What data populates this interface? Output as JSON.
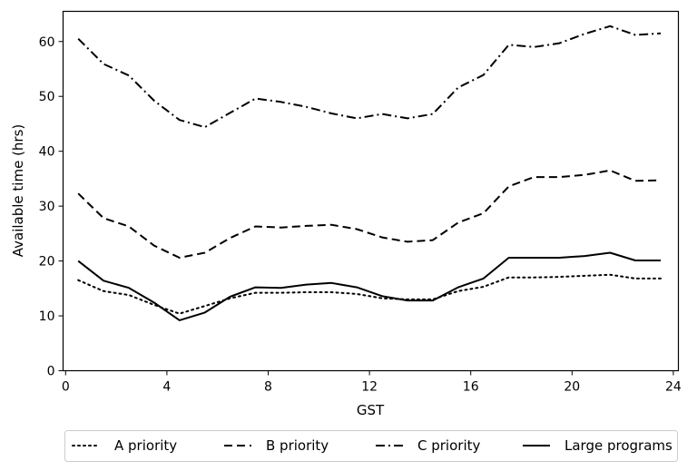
{
  "chart_data": {
    "type": "line",
    "title": "",
    "xlabel": "GST",
    "ylabel": "Available time (hrs)",
    "xlim": [
      -0.1,
      24.2
    ],
    "ylim": [
      0,
      65.5
    ],
    "xticks": [
      0,
      4,
      8,
      12,
      16,
      20,
      24
    ],
    "yticks": [
      0,
      10,
      20,
      30,
      40,
      50,
      60
    ],
    "grid": false,
    "legend_position": "bottom",
    "x": [
      0.5,
      1.5,
      2.5,
      3.5,
      4.5,
      5.5,
      6.5,
      7.5,
      8.5,
      9.5,
      10.5,
      11.5,
      12.5,
      13.5,
      14.5,
      15.5,
      16.5,
      17.5,
      18.5,
      19.5,
      20.5,
      21.5,
      22.5,
      23.5
    ],
    "series": [
      {
        "name": "A priority",
        "dash": "dotted",
        "values": [
          16.5,
          14.5,
          13.8,
          12.0,
          10.4,
          11.8,
          13.2,
          14.2,
          14.2,
          14.3,
          14.3,
          14.0,
          13.2,
          13.0,
          13.0,
          14.5,
          15.3,
          17.0,
          17.0,
          17.1,
          17.3,
          17.5,
          16.8,
          16.8
        ]
      },
      {
        "name": "B priority",
        "dash": "dashed",
        "values": [
          32.3,
          27.8,
          26.3,
          22.8,
          20.6,
          21.5,
          24.2,
          26.3,
          26.1,
          26.4,
          26.6,
          25.8,
          24.3,
          23.5,
          23.8,
          27.0,
          28.7,
          33.6,
          35.3,
          35.3,
          35.7,
          36.5,
          34.6,
          34.7
        ]
      },
      {
        "name": "C priority",
        "dash": "dashdot",
        "values": [
          60.5,
          55.9,
          53.8,
          49.2,
          45.7,
          44.4,
          47.0,
          49.6,
          49.0,
          48.1,
          46.9,
          46.0,
          46.8,
          46.0,
          46.8,
          51.6,
          53.9,
          59.4,
          59.0,
          59.7,
          61.4,
          62.8,
          61.2,
          61.5
        ]
      },
      {
        "name": "Large programs",
        "dash": "solid",
        "values": [
          20.0,
          16.4,
          15.1,
          12.4,
          9.2,
          10.6,
          13.5,
          15.2,
          15.1,
          15.7,
          16.0,
          15.2,
          13.6,
          12.8,
          12.8,
          15.2,
          16.8,
          20.6,
          20.6,
          20.6,
          20.9,
          21.5,
          20.1,
          20.1
        ]
      }
    ]
  }
}
